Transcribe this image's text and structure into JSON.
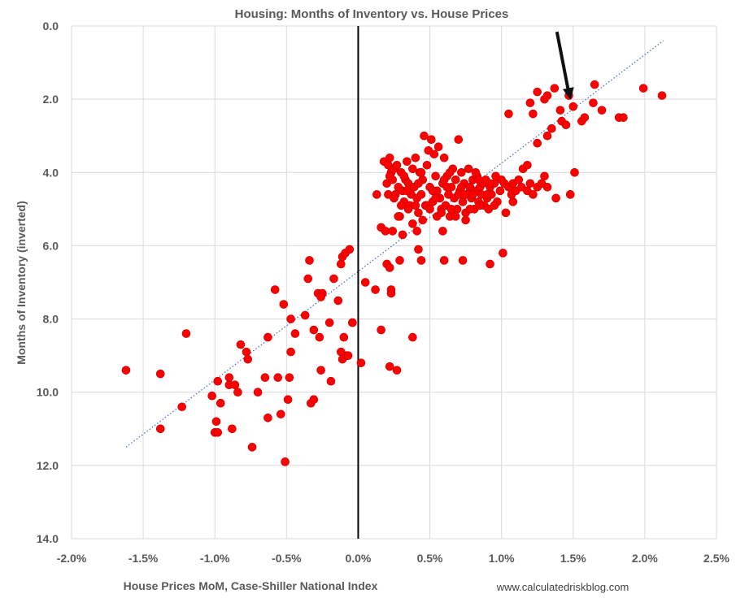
{
  "chart_data": {
    "type": "scatter",
    "title": "Housing: Months of Inventory vs. House Prices",
    "xlabel": "House Prices MoM, Case-Shiller National Index",
    "ylabel": "Months of Inventory (inverted)",
    "source": "www.calculatedriskblog.com",
    "xlim": [
      -2.0,
      2.5
    ],
    "ylim": [
      0.0,
      14.0
    ],
    "y_inverted": true,
    "grid": true,
    "x_ticks": [
      {
        "value": -2.0,
        "label": "-2.0%"
      },
      {
        "value": -1.5,
        "label": "-1.5%"
      },
      {
        "value": -1.0,
        "label": "-1.0%"
      },
      {
        "value": -0.5,
        "label": "-0.5%"
      },
      {
        "value": 0.0,
        "label": "0.0%"
      },
      {
        "value": 0.5,
        "label": "0.5%"
      },
      {
        "value": 1.0,
        "label": "1.0%"
      },
      {
        "value": 1.5,
        "label": "1.5%"
      },
      {
        "value": 2.0,
        "label": "2.0%"
      },
      {
        "value": 2.5,
        "label": "2.5%"
      }
    ],
    "y_ticks": [
      {
        "value": 0,
        "label": "0.0"
      },
      {
        "value": 2,
        "label": "2.0"
      },
      {
        "value": 4,
        "label": "4.0"
      },
      {
        "value": 6,
        "label": "6.0"
      },
      {
        "value": 8,
        "label": "8.0"
      },
      {
        "value": 10,
        "label": "10.0"
      },
      {
        "value": 12,
        "label": "12.0"
      },
      {
        "value": 14,
        "label": "14.0"
      }
    ],
    "marker_color": "#ff0000",
    "trendline": {
      "style": "dotted",
      "color": "#4472c4",
      "x": [
        -1.62,
        2.13
      ],
      "y": [
        11.5,
        0.4
      ]
    },
    "reference_line": {
      "x": 0.0,
      "color": "#000000"
    },
    "annotation_arrow": {
      "points_to": {
        "x": 1.5,
        "y": 2.2
      }
    },
    "points": [
      [
        -1.62,
        9.4
      ],
      [
        -1.38,
        9.5
      ],
      [
        -1.38,
        11.0
      ],
      [
        -1.23,
        10.4
      ],
      [
        -1.2,
        8.4
      ],
      [
        -1.02,
        10.1
      ],
      [
        -1.0,
        11.1
      ],
      [
        -0.99,
        10.8
      ],
      [
        -0.98,
        9.7
      ],
      [
        -0.98,
        11.1
      ],
      [
        -0.96,
        10.3
      ],
      [
        -0.9,
        9.8
      ],
      [
        -0.9,
        9.6
      ],
      [
        -0.88,
        11.0
      ],
      [
        -0.86,
        9.8
      ],
      [
        -0.84,
        10.0
      ],
      [
        -0.82,
        8.7
      ],
      [
        -0.78,
        8.9
      ],
      [
        -0.77,
        9.1
      ],
      [
        -0.74,
        11.5
      ],
      [
        -0.7,
        10.0
      ],
      [
        -0.65,
        9.6
      ],
      [
        -0.63,
        10.7
      ],
      [
        -0.63,
        8.5
      ],
      [
        -0.58,
        7.2
      ],
      [
        -0.56,
        9.6
      ],
      [
        -0.54,
        10.6
      ],
      [
        -0.52,
        7.6
      ],
      [
        -0.51,
        11.9
      ],
      [
        -0.49,
        10.2
      ],
      [
        -0.48,
        9.6
      ],
      [
        -0.47,
        8.0
      ],
      [
        -0.47,
        8.9
      ],
      [
        -0.44,
        8.4
      ],
      [
        -0.37,
        7.9
      ],
      [
        -0.35,
        6.9
      ],
      [
        -0.34,
        6.4
      ],
      [
        -0.33,
        10.3
      ],
      [
        -0.31,
        10.2
      ],
      [
        -0.31,
        8.3
      ],
      [
        -0.28,
        7.3
      ],
      [
        -0.27,
        8.5
      ],
      [
        -0.26,
        9.4
      ],
      [
        -0.25,
        7.3
      ],
      [
        -0.26,
        7.4
      ],
      [
        -0.2,
        8.1
      ],
      [
        -0.19,
        9.7
      ],
      [
        -0.17,
        6.9
      ],
      [
        -0.14,
        7.5
      ],
      [
        -0.12,
        6.5
      ],
      [
        -0.11,
        6.3
      ],
      [
        -0.09,
        6.2
      ],
      [
        -0.06,
        6.1
      ],
      [
        -0.12,
        8.9
      ],
      [
        -0.11,
        9.1
      ],
      [
        -0.1,
        8.5
      ],
      [
        -0.08,
        9.0
      ],
      [
        -0.07,
        9.0
      ],
      [
        -0.04,
        8.1
      ],
      [
        -0.04,
        8.1
      ],
      [
        0.02,
        9.2
      ],
      [
        0.05,
        7.0
      ],
      [
        0.12,
        7.2
      ],
      [
        0.13,
        4.6
      ],
      [
        0.16,
        5.5
      ],
      [
        0.16,
        8.3
      ],
      [
        0.19,
        5.6
      ],
      [
        0.2,
        6.5
      ],
      [
        0.22,
        6.6
      ],
      [
        0.22,
        9.3
      ],
      [
        0.23,
        7.2
      ],
      [
        0.23,
        7.3
      ],
      [
        0.24,
        5.6
      ],
      [
        0.27,
        9.4
      ],
      [
        0.29,
        6.4
      ],
      [
        0.31,
        5.7
      ],
      [
        0.38,
        8.5
      ],
      [
        0.41,
        5.6
      ],
      [
        0.42,
        6.1
      ],
      [
        0.44,
        6.4
      ],
      [
        0.18,
        3.7
      ],
      [
        0.2,
        4.3
      ],
      [
        0.21,
        3.8
      ],
      [
        0.21,
        4.6
      ],
      [
        0.22,
        3.6
      ],
      [
        0.23,
        4.0
      ],
      [
        0.24,
        4.2
      ],
      [
        0.25,
        3.9
      ],
      [
        0.26,
        4.6
      ],
      [
        0.27,
        3.8
      ],
      [
        0.28,
        4.4
      ],
      [
        0.29,
        5.2
      ],
      [
        0.3,
        4.0
      ],
      [
        0.31,
        4.5
      ],
      [
        0.32,
        4.8
      ],
      [
        0.33,
        4.2
      ],
      [
        0.34,
        3.7
      ],
      [
        0.35,
        4.3
      ],
      [
        0.36,
        4.9
      ],
      [
        0.37,
        4.6
      ],
      [
        0.38,
        3.9
      ],
      [
        0.39,
        4.4
      ],
      [
        0.4,
        3.6
      ],
      [
        0.41,
        4.7
      ],
      [
        0.42,
        5.1
      ],
      [
        0.43,
        4.0
      ],
      [
        0.44,
        4.6
      ],
      [
        0.45,
        4.2
      ],
      [
        0.46,
        3.0
      ],
      [
        0.47,
        4.9
      ],
      [
        0.48,
        3.8
      ],
      [
        0.49,
        3.4
      ],
      [
        0.5,
        4.4
      ],
      [
        0.51,
        3.1
      ],
      [
        0.52,
        4.8
      ],
      [
        0.53,
        3.5
      ],
      [
        0.54,
        4.1
      ],
      [
        0.55,
        4.5
      ],
      [
        0.56,
        3.3
      ],
      [
        0.57,
        4.7
      ],
      [
        0.58,
        5.0
      ],
      [
        0.59,
        4.3
      ],
      [
        0.6,
        3.6
      ],
      [
        0.61,
        4.9
      ],
      [
        0.62,
        4.1
      ],
      [
        0.63,
        4.6
      ],
      [
        0.64,
        5.2
      ],
      [
        0.65,
        4.4
      ],
      [
        0.66,
        3.9
      ],
      [
        0.67,
        4.7
      ],
      [
        0.68,
        4.2
      ],
      [
        0.69,
        5.0
      ],
      [
        0.7,
        3.1
      ],
      [
        0.71,
        4.5
      ],
      [
        0.72,
        4.0
      ],
      [
        0.73,
        4.8
      ],
      [
        0.74,
        4.3
      ],
      [
        0.75,
        5.1
      ],
      [
        0.76,
        4.6
      ],
      [
        0.77,
        3.9
      ],
      [
        0.78,
        4.4
      ],
      [
        0.79,
        4.7
      ],
      [
        0.8,
        4.2
      ],
      [
        0.81,
        5.0
      ],
      [
        0.82,
        4.5
      ],
      [
        0.83,
        4.1
      ],
      [
        0.84,
        4.8
      ],
      [
        0.85,
        4.4
      ],
      [
        0.86,
        4.6
      ],
      [
        0.87,
        4.3
      ],
      [
        0.88,
        4.9
      ],
      [
        0.89,
        4.2
      ],
      [
        0.9,
        4.7
      ],
      [
        0.91,
        5.0
      ],
      [
        0.92,
        4.4
      ],
      [
        0.93,
        4.6
      ],
      [
        0.95,
        4.3
      ],
      [
        0.97,
        4.8
      ],
      [
        0.99,
        4.5
      ],
      [
        1.0,
        4.2
      ],
      [
        1.02,
        4.3
      ],
      [
        1.03,
        5.1
      ],
      [
        1.05,
        4.4
      ],
      [
        1.07,
        4.6
      ],
      [
        1.08,
        4.3
      ],
      [
        1.1,
        4.5
      ],
      [
        1.12,
        4.2
      ],
      [
        1.14,
        4.4
      ],
      [
        1.15,
        3.9
      ],
      [
        1.18,
        4.5
      ],
      [
        1.2,
        4.3
      ],
      [
        1.22,
        4.6
      ],
      [
        1.25,
        4.4
      ],
      [
        1.3,
        4.1
      ],
      [
        1.32,
        4.4
      ],
      [
        1.48,
        4.6
      ],
      [
        1.51,
        4.0
      ],
      [
        0.25,
        4.7
      ],
      [
        0.35,
        5.0
      ],
      [
        0.45,
        5.3
      ],
      [
        0.55,
        5.2
      ],
      [
        0.65,
        5.0
      ],
      [
        0.75,
        5.3
      ],
      [
        0.85,
        4.9
      ],
      [
        0.28,
        5.2
      ],
      [
        0.38,
        5.4
      ],
      [
        0.48,
        4.9
      ],
      [
        0.58,
        5.1
      ],
      [
        0.68,
        5.2
      ],
      [
        0.78,
        5.0
      ],
      [
        0.3,
        4.9
      ],
      [
        0.4,
        4.9
      ],
      [
        0.5,
        5.0
      ],
      [
        0.6,
        4.2
      ],
      [
        0.7,
        4.6
      ],
      [
        0.8,
        4.6
      ],
      [
        0.9,
        4.6
      ],
      [
        0.52,
        4.5
      ],
      [
        0.62,
        4.4
      ],
      [
        0.72,
        4.4
      ],
      [
        0.82,
        4.0
      ],
      [
        0.92,
        4.3
      ],
      [
        0.42,
        4.3
      ],
      [
        0.32,
        4.1
      ],
      [
        0.22,
        4.1
      ],
      [
        0.34,
        4.5
      ],
      [
        0.44,
        4.0
      ],
      [
        0.54,
        4.7
      ],
      [
        0.64,
        4.0
      ],
      [
        0.74,
        4.6
      ],
      [
        0.84,
        4.2
      ],
      [
        0.6,
        6.4
      ],
      [
        0.73,
        6.4
      ],
      [
        0.92,
        6.5
      ],
      [
        1.01,
        6.2
      ],
      [
        0.59,
        5.6
      ],
      [
        1.05,
        2.4
      ],
      [
        1.2,
        2.1
      ],
      [
        1.22,
        2.4
      ],
      [
        1.25,
        1.8
      ],
      [
        1.3,
        2.0
      ],
      [
        1.32,
        1.9
      ],
      [
        1.32,
        3.0
      ],
      [
        1.37,
        1.7
      ],
      [
        1.41,
        2.3
      ],
      [
        1.42,
        2.6
      ],
      [
        1.45,
        2.7
      ],
      [
        1.47,
        1.9
      ],
      [
        1.5,
        2.2
      ],
      [
        1.56,
        2.6
      ],
      [
        1.58,
        2.5
      ],
      [
        1.64,
        2.1
      ],
      [
        1.65,
        1.6
      ],
      [
        1.7,
        2.3
      ],
      [
        1.82,
        2.5
      ],
      [
        1.85,
        2.5
      ],
      [
        1.99,
        1.7
      ],
      [
        2.12,
        1.9
      ],
      [
        1.28,
        4.3
      ],
      [
        1.38,
        4.7
      ],
      [
        1.35,
        2.8
      ],
      [
        1.25,
        3.2
      ],
      [
        1.18,
        3.8
      ],
      [
        0.95,
        4.9
      ],
      [
        1.08,
        4.8
      ],
      [
        0.96,
        4.1
      ]
    ]
  }
}
